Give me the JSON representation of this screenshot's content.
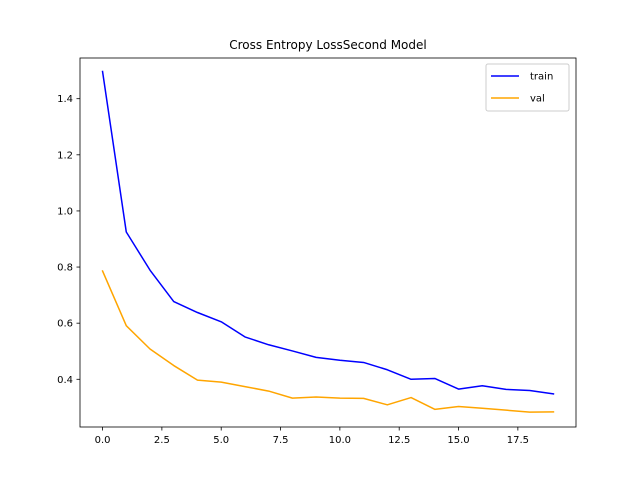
{
  "chart_data": {
    "type": "line",
    "title": "Cross Entropy LossSecond Model",
    "xlabel": "",
    "ylabel": "",
    "xlim": [
      -0.95,
      19.95
    ],
    "ylim": [
      0.23,
      1.545
    ],
    "xticks": [
      0,
      2.5,
      5,
      7.5,
      10,
      12.5,
      15,
      17.5
    ],
    "xtick_labels": [
      "0.0",
      "2.5",
      "5.0",
      "7.5",
      "10.0",
      "12.5",
      "15.0",
      "17.5"
    ],
    "yticks": [
      0.4,
      0.6,
      0.8,
      1.0,
      1.2,
      1.4
    ],
    "ytick_labels": [
      "0.4",
      "0.6",
      "0.8",
      "1.0",
      "1.2",
      "1.4"
    ],
    "grid": false,
    "legend_position": "top-right",
    "x": [
      0,
      1,
      2,
      3,
      4,
      5,
      6,
      7,
      8,
      9,
      10,
      11,
      12,
      13,
      14,
      15,
      16,
      17,
      18,
      19
    ],
    "series": [
      {
        "name": "train",
        "color": "#0000ff",
        "values": [
          1.497,
          0.925,
          0.789,
          0.677,
          0.638,
          0.605,
          0.551,
          0.523,
          0.501,
          0.478,
          0.468,
          0.46,
          0.434,
          0.4,
          0.403,
          0.365,
          0.377,
          0.364,
          0.36,
          0.348
        ]
      },
      {
        "name": "val",
        "color": "#ffa500",
        "values": [
          0.786,
          0.591,
          0.508,
          0.449,
          0.397,
          0.39,
          0.374,
          0.358,
          0.333,
          0.337,
          0.333,
          0.332,
          0.309,
          0.335,
          0.293,
          0.303,
          0.297,
          0.29,
          0.283,
          0.284
        ]
      }
    ]
  }
}
